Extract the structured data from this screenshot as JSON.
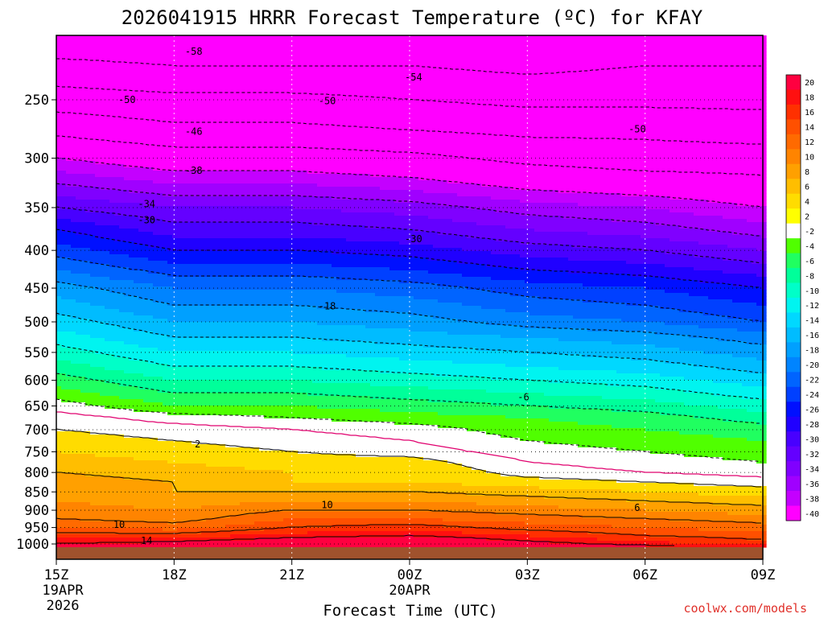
{
  "chart_data": {
    "type": "heatmap",
    "title": "2026041915 HRRR Forecast Temperature (ºC) for KFAY",
    "xlabel": "Forecast Time (UTC)",
    "credit": "coolwx.com/models",
    "x_ticks": [
      {
        "hour": 0,
        "label": "15Z",
        "sub": [
          "19APR",
          "2026"
        ]
      },
      {
        "hour": 3,
        "label": "18Z",
        "sub": []
      },
      {
        "hour": 6,
        "label": "21Z",
        "sub": []
      },
      {
        "hour": 9,
        "label": "00Z",
        "sub": [
          "20APR"
        ]
      },
      {
        "hour": 12,
        "label": "03Z",
        "sub": []
      },
      {
        "hour": 15,
        "label": "06Z",
        "sub": []
      },
      {
        "hour": 18,
        "label": "09Z",
        "sub": []
      }
    ],
    "y_ticks": [
      250,
      300,
      350,
      400,
      450,
      500,
      550,
      600,
      650,
      700,
      750,
      800,
      850,
      900,
      950,
      1000
    ],
    "colorbar": {
      "levels": [
        20,
        18,
        16,
        14,
        12,
        10,
        8,
        6,
        4,
        2,
        -2,
        -4,
        -6,
        -8,
        -10,
        -12,
        -14,
        -16,
        -18,
        -20,
        -22,
        -24,
        -26,
        -28,
        -30,
        -32,
        -34,
        -36,
        -38,
        -40
      ],
      "colors": [
        "#ff0040",
        "#ff1010",
        "#ff3000",
        "#ff5000",
        "#ff6a00",
        "#ff8400",
        "#ffa000",
        "#ffbe00",
        "#ffdc00",
        "#ffff00",
        "#ffffff",
        "#50ff00",
        "#20ff60",
        "#00ff9a",
        "#00ffc8",
        "#00f4f0",
        "#00d8ff",
        "#00bcff",
        "#00a0ff",
        "#0084ff",
        "#0064ff",
        "#0040ff",
        "#0010ff",
        "#2000ff",
        "#4800ff",
        "#6400ff",
        "#8000ff",
        "#a000ff",
        "#c400ff",
        "#ff00ff"
      ]
    },
    "forecast_hours": [
      0,
      3,
      6,
      9,
      12,
      15,
      18
    ],
    "levels_hpa": [
      1010,
      1000,
      975,
      950,
      925,
      900,
      875,
      850,
      825,
      800,
      775,
      750,
      725,
      700,
      675,
      650,
      625,
      600,
      575,
      550,
      525,
      500,
      475,
      450,
      425,
      400,
      375,
      350,
      325,
      300,
      275,
      250,
      225,
      200
    ],
    "temperature_c": [
      [
        20,
        21,
        23,
        24,
        21,
        19,
        17
      ],
      [
        18,
        19,
        21,
        22,
        19,
        17,
        15
      ],
      [
        15,
        15,
        17,
        18,
        16,
        14,
        13
      ],
      [
        12,
        11,
        14,
        15,
        13,
        12,
        11
      ],
      [
        10,
        9,
        12,
        12,
        11,
        10,
        9
      ],
      [
        9,
        8,
        10,
        10,
        9,
        8,
        7
      ],
      [
        8,
        7,
        8,
        8,
        7,
        6,
        5
      ],
      [
        8,
        6,
        6,
        6,
        5,
        4,
        3
      ],
      [
        7,
        6,
        4,
        4,
        3,
        2,
        1
      ],
      [
        6,
        5,
        4,
        4,
        1,
        0,
        -1
      ],
      [
        5,
        4,
        3,
        3,
        0,
        -1,
        -2
      ],
      [
        4,
        3,
        2,
        1,
        -1,
        -2,
        -3
      ],
      [
        3,
        2,
        1,
        0,
        -2,
        -3,
        -4
      ],
      [
        2,
        1,
        0,
        -1,
        -3,
        -4,
        -5
      ],
      [
        1,
        -1,
        -2,
        -3,
        -4,
        -5,
        -7
      ],
      [
        -1,
        -4,
        -4,
        -5,
        -6,
        -7,
        -9
      ],
      [
        -3,
        -6,
        -6,
        -7,
        -8,
        -9,
        -11
      ],
      [
        -5,
        -8,
        -8,
        -9,
        -10,
        -11,
        -13
      ],
      [
        -7,
        -10,
        -10,
        -11,
        -12,
        -13,
        -15
      ],
      [
        -9,
        -12,
        -12,
        -13,
        -14,
        -15,
        -17
      ],
      [
        -11,
        -14,
        -14,
        -15,
        -16,
        -17,
        -19
      ],
      [
        -13,
        -16,
        -16,
        -17,
        -19,
        -20,
        -22
      ],
      [
        -15,
        -18,
        -18,
        -19,
        -21,
        -22,
        -24
      ],
      [
        -17,
        -20,
        -20,
        -21,
        -23,
        -24,
        -26
      ],
      [
        -20,
        -23,
        -23,
        -24,
        -26,
        -27,
        -29
      ],
      [
        -23,
        -26,
        -26,
        -27,
        -29,
        -30,
        -32
      ],
      [
        -26,
        -29,
        -29,
        -30,
        -32,
        -33,
        -35
      ],
      [
        -30,
        -32,
        -32,
        -33,
        -35,
        -36,
        -38
      ],
      [
        -34,
        -36,
        -36,
        -37,
        -39,
        -40,
        -41
      ],
      [
        -38,
        -40,
        -40,
        -41,
        -43,
        -44,
        -44
      ],
      [
        -43,
        -45,
        -45,
        -46,
        -47,
        -47,
        -48
      ],
      [
        -48,
        -49,
        -49,
        -50,
        -51,
        -51,
        -51
      ],
      [
        -53,
        -54,
        -54,
        -54,
        -55,
        -54,
        -54
      ],
      [
        -58,
        -58,
        -58,
        -58,
        -58,
        -56,
        -56
      ]
    ],
    "contour_labels": [
      {
        "text": "-58",
        "hour": 3.5,
        "p": 215
      },
      {
        "text": "-54",
        "hour": 9.1,
        "p": 233
      },
      {
        "text": "-50",
        "hour": 1.8,
        "p": 250
      },
      {
        "text": "-50",
        "hour": 6.9,
        "p": 251
      },
      {
        "text": "-50",
        "hour": 14.8,
        "p": 274
      },
      {
        "text": "-46",
        "hour": 3.5,
        "p": 276
      },
      {
        "text": "-38",
        "hour": 3.5,
        "p": 312
      },
      {
        "text": "-34",
        "hour": 2.3,
        "p": 346
      },
      {
        "text": "-30",
        "hour": 2.3,
        "p": 364
      },
      {
        "text": "-30",
        "hour": 9.1,
        "p": 386
      },
      {
        "text": "-18",
        "hour": 6.9,
        "p": 476
      },
      {
        "text": "-6",
        "hour": 11.9,
        "p": 632
      },
      {
        "text": "2",
        "hour": 3.6,
        "p": 732
      },
      {
        "text": "10",
        "hour": 6.9,
        "p": 885
      },
      {
        "text": "10",
        "hour": 1.6,
        "p": 942
      },
      {
        "text": "14",
        "hour": 2.3,
        "p": 990
      },
      {
        "text": "6",
        "hour": 14.8,
        "p": 893
      }
    ]
  }
}
